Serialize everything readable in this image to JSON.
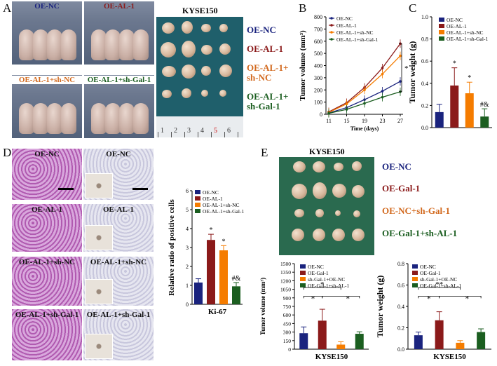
{
  "panel_letters": {
    "a": "A",
    "b": "B",
    "c": "C",
    "d": "D",
    "e": "E"
  },
  "panelA": {
    "mice_labels": [
      "OE-NC",
      "OE-AL-1",
      "OE-AL-1+sh-NC",
      "OE-AL-1+sh-Gal-1"
    ],
    "mice_label_colors": [
      "#1a237e",
      "#8b1a1a",
      "#d2691e",
      "#1b5e20"
    ],
    "tumor_title": "KYSE150",
    "group_labels": [
      {
        "l1": "OE-NC",
        "l2": "",
        "color": "#1a237e"
      },
      {
        "l1": "OE-AL-1",
        "l2": "",
        "color": "#8b1a1a"
      },
      {
        "l1": "OE-AL-1+",
        "l2": "sh-NC",
        "color": "#d2691e"
      },
      {
        "l1": "OE-AL-1+",
        "l2": "sh-Gal-1",
        "color": "#1b5e20"
      }
    ],
    "ruler_numbers": [
      "1",
      "2",
      "3",
      "4",
      "5",
      "6"
    ]
  },
  "panelD": {
    "he_labels": [
      "OE-NC",
      "OE-AL-1",
      "OE-AL-1+sh-NC",
      "OE-AL-1+sh-Gal-1"
    ],
    "ihc_labels": [
      "OE-NC",
      "OE-AL-1",
      "OE-AL-1+sh-NC",
      "OE-AL-1+sh-Gal-1"
    ]
  },
  "panelE": {
    "tumor_title": "KYSE150",
    "group_labels": [
      {
        "text": "OE-NC",
        "color": "#1a237e"
      },
      {
        "text": "OE-Gal-1",
        "color": "#8b1a1a"
      },
      {
        "text": "OE-NC+sh-Gal-1",
        "color": "#d2691e"
      },
      {
        "text": "OE-Gal-1+sh-AL-1",
        "color": "#1b5e20"
      }
    ]
  },
  "chart_data": [
    {
      "id": "B",
      "type": "line",
      "ylabel": "Tumor volume (mm³)",
      "xlabel": "Time (days)",
      "x": [
        11,
        15,
        19,
        23,
        27
      ],
      "ylim": [
        0,
        800
      ],
      "yticks": [
        0,
        100,
        200,
        300,
        400,
        500,
        600,
        700,
        800
      ],
      "series": [
        {
          "name": "OE-NC",
          "color": "#1a237e",
          "values": [
            10,
            55,
            120,
            190,
            270
          ]
        },
        {
          "name": "OE-AL-1",
          "color": "#8b1a1a",
          "values": [
            20,
            95,
            220,
            380,
            580
          ]
        },
        {
          "name": "OE-AL-1+sh-NC",
          "color": "#f57c00",
          "values": [
            15,
            85,
            200,
            330,
            480
          ]
        },
        {
          "name": "OE-AL-1+sh-Gal-1",
          "color": "#1b5e20",
          "values": [
            8,
            40,
            90,
            140,
            185
          ]
        }
      ],
      "annotation": "*"
    },
    {
      "id": "C",
      "type": "bar",
      "ylabel": "Tumor weight (g)",
      "ylim": [
        0,
        1.0
      ],
      "yticks": [
        0,
        0.2,
        0.4,
        0.6,
        0.8,
        1.0
      ],
      "categories": [
        "OE-NC",
        "OE-AL-1",
        "OE-AL-1+sh-NC",
        "OE-AL-1+sh-Gal-1"
      ],
      "colors": [
        "#1a237e",
        "#8b1a1a",
        "#f57c00",
        "#1b5e20"
      ],
      "values": [
        0.14,
        0.38,
        0.31,
        0.1
      ],
      "errors": [
        0.07,
        0.16,
        0.1,
        0.07
      ],
      "sig": [
        "",
        "*",
        "*",
        "#&"
      ]
    },
    {
      "id": "D",
      "type": "bar",
      "ylabel": "Relative ratio of positive cells",
      "xlabel": "Ki-67",
      "ylim": [
        0,
        6
      ],
      "yticks": [
        0,
        1,
        2,
        3,
        4,
        5,
        6
      ],
      "categories": [
        "OE-NC",
        "OE-AL-1",
        "OE-AL-1+sh-NC",
        "OE-AL-1+sh-Gal-1"
      ],
      "colors": [
        "#1a237e",
        "#8b1a1a",
        "#f57c00",
        "#1b5e20"
      ],
      "values": [
        1.15,
        3.4,
        2.85,
        0.95
      ],
      "errors": [
        0.2,
        0.3,
        0.25,
        0.2
      ],
      "sig": [
        "",
        "*",
        "*",
        "#&"
      ]
    },
    {
      "id": "E1",
      "type": "bar",
      "ylabel": "Tumor volume (mm³)",
      "xlabel": "KYSE150",
      "ylim": [
        0,
        1500
      ],
      "yticks": [
        0,
        150,
        300,
        450,
        600,
        750,
        900,
        1050,
        1200,
        1350,
        1500
      ],
      "categories": [
        "OE-NC",
        "OE-Gal-1",
        "sh-Gal-1+OE-NC",
        "OE-Gal-1+sh-AL-1"
      ],
      "colors": [
        "#1a237e",
        "#8b1a1a",
        "#f57c00",
        "#1b5e20"
      ],
      "values": [
        280,
        500,
        80,
        270
      ],
      "errors": [
        110,
        200,
        50,
        35
      ],
      "brackets": [
        "*",
        "*",
        "*"
      ]
    },
    {
      "id": "E2",
      "type": "bar",
      "ylabel": "Tumor weight (g)",
      "xlabel": "KYSE150",
      "ylim": [
        0,
        0.8
      ],
      "yticks": [
        0,
        0.2,
        0.4,
        0.6,
        0.8
      ],
      "categories": [
        "OE-NC",
        "OE-Gal-1",
        "sh-Gal-1+OE-NC",
        "OE-Gal-1+sh-AL-1"
      ],
      "colors": [
        "#1a237e",
        "#8b1a1a",
        "#f57c00",
        "#1b5e20"
      ],
      "values": [
        0.13,
        0.27,
        0.06,
        0.16
      ],
      "errors": [
        0.03,
        0.08,
        0.02,
        0.03
      ],
      "brackets": [
        "**",
        "*",
        "*"
      ]
    }
  ]
}
